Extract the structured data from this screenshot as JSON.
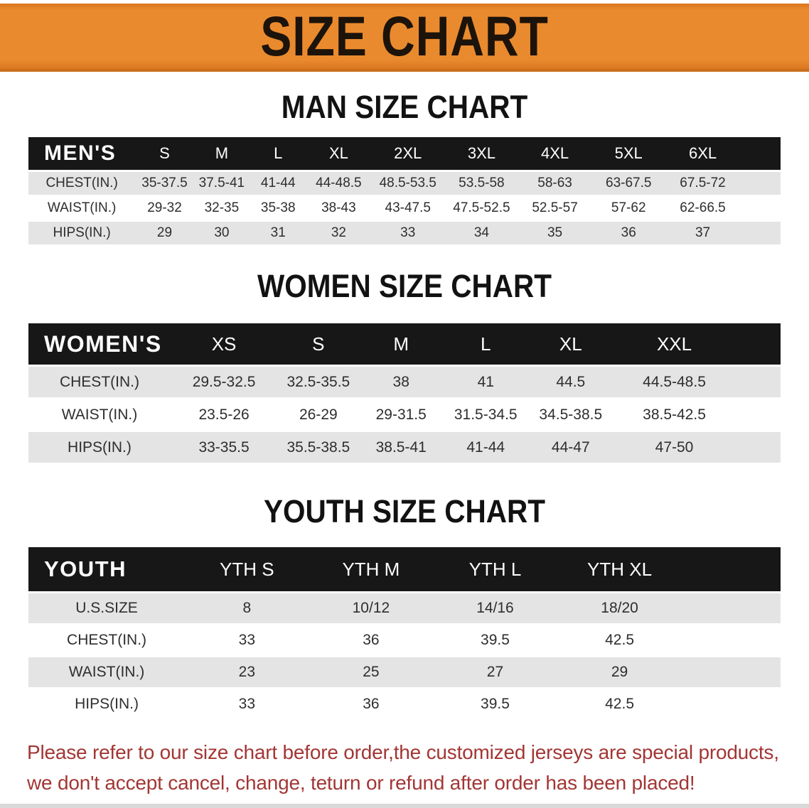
{
  "banner": {
    "title": "SIZE CHART"
  },
  "colors": {
    "banner_bg": "#EA8A2E",
    "banner_border": "#C96F1C",
    "header_bg": "#171717",
    "row_alt_bg": "#E4E4E4",
    "disclaimer_text": "#A23634"
  },
  "sections": [
    {
      "heading": "MAN SIZE CHART",
      "table": {
        "header": [
          "MEN'S",
          "S",
          "M",
          "L",
          "XL",
          "2XL",
          "3XL",
          "4XL",
          "5XL",
          "6XL"
        ],
        "rows": [
          {
            "label": "CHEST(IN.)",
            "values": [
              "35-37.5",
              "37.5-41",
              "41-44",
              "44-48.5",
              "48.5-53.5",
              "53.5-58",
              "58-63",
              "63-67.5",
              "67.5-72"
            ]
          },
          {
            "label": "WAIST(IN.)",
            "values": [
              "29-32",
              "32-35",
              "35-38",
              "38-43",
              "43-47.5",
              "47.5-52.5",
              "52.5-57",
              "57-62",
              "62-66.5"
            ]
          },
          {
            "label": "HIPS(IN.)",
            "values": [
              "29",
              "30",
              "31",
              "32",
              "33",
              "34",
              "35",
              "36",
              "37"
            ]
          }
        ]
      }
    },
    {
      "heading": "WOMEN SIZE CHART",
      "table": {
        "header": [
          "WOMEN'S",
          "XS",
          "S",
          "M",
          "L",
          "XL",
          "XXL"
        ],
        "rows": [
          {
            "label": "CHEST(IN.)",
            "values": [
              "29.5-32.5",
              "32.5-35.5",
              "38",
              "41",
              "44.5",
              "44.5-48.5"
            ]
          },
          {
            "label": "WAIST(IN.)",
            "values": [
              "23.5-26",
              "26-29",
              "29-31.5",
              "31.5-34.5",
              "34.5-38.5",
              "38.5-42.5"
            ]
          },
          {
            "label": "HIPS(IN.)",
            "values": [
              "33-35.5",
              "35.5-38.5",
              "38.5-41",
              "41-44",
              "44-47",
              "47-50"
            ]
          }
        ]
      }
    },
    {
      "heading": "YOUTH SIZE CHART",
      "table": {
        "header": [
          "YOUTH",
          "YTH S",
          "YTH M",
          "YTH L",
          "YTH XL"
        ],
        "rows": [
          {
            "label": "U.S.SIZE",
            "values": [
              "8",
              "10/12",
              "14/16",
              "18/20"
            ]
          },
          {
            "label": "CHEST(IN.)",
            "values": [
              "33",
              "36",
              "39.5",
              "42.5"
            ]
          },
          {
            "label": "WAIST(IN.)",
            "values": [
              "23",
              "25",
              "27",
              "29"
            ]
          },
          {
            "label": "HIPS(IN.)",
            "values": [
              "33",
              "36",
              "39.5",
              "42.5"
            ]
          }
        ]
      }
    }
  ],
  "disclaimer": {
    "line1": "Please refer to our size chart before order,the customized jerseys are special products,",
    "line2": "we don't accept cancel, change, teturn or refund after order has been placed!"
  }
}
